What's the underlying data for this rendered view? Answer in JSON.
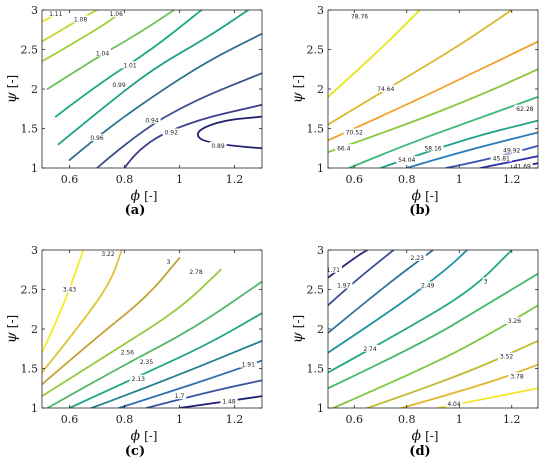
{
  "figure": {
    "x_label": "ϕ",
    "y_label": "ψ",
    "unit": "[-]"
  },
  "chart_data": [
    {
      "type": "contour",
      "panel_label": "(a)",
      "xlabel": "ϕ [-]",
      "ylabel": "ψ [-]",
      "xlim": [
        0.5,
        1.3
      ],
      "ylim": [
        1,
        3
      ],
      "xticks": [
        0.6,
        0.8,
        1,
        1.2
      ],
      "xtick_labels": [
        "0.6",
        "0.8",
        "1",
        "1.2"
      ],
      "yticks": [
        1,
        1.5,
        2,
        2.5,
        3
      ],
      "ytick_labels": [
        "1",
        "1.5",
        "2",
        "2.5",
        "3"
      ],
      "grid": false,
      "levels": [
        {
          "label": "1.11",
          "color": "#e6e619",
          "points": [
            [
              0.5,
              2.85
            ],
            [
              0.58,
              3.0
            ]
          ],
          "label_at": [
            0.55,
            2.95
          ]
        },
        {
          "label": "1.08",
          "color": "#c9d235",
          "points": [
            [
              0.5,
              2.6
            ],
            [
              0.62,
              2.85
            ],
            [
              0.7,
              3.0
            ]
          ],
          "label_at": [
            0.64,
            2.88
          ]
        },
        {
          "label": "1.06",
          "color": "#a0d13f",
          "points": [
            [
              0.5,
              2.35
            ],
            [
              0.7,
              2.75
            ],
            [
              0.8,
              3.0
            ]
          ],
          "label_at": [
            0.77,
            2.95
          ]
        },
        {
          "label": "1.04",
          "color": "#6fc25a",
          "points": [
            [
              0.52,
              2.0
            ],
            [
              0.7,
              2.4
            ],
            [
              0.85,
              2.7
            ],
            [
              0.98,
              3.0
            ]
          ],
          "label_at": [
            0.72,
            2.45
          ]
        },
        {
          "label": "1.01",
          "color": "#22a884",
          "points": [
            [
              0.55,
              1.65
            ],
            [
              0.7,
              2.05
            ],
            [
              0.9,
              2.5
            ],
            [
              1.08,
              3.0
            ]
          ],
          "label_at": [
            0.82,
            2.3
          ]
        },
        {
          "label": "0.99",
          "color": "#1fa187",
          "points": [
            [
              0.56,
              1.3
            ],
            [
              0.7,
              1.7
            ],
            [
              0.9,
              2.25
            ],
            [
              1.1,
              2.65
            ],
            [
              1.25,
              3.0
            ]
          ],
          "label_at": [
            0.78,
            2.05
          ]
        },
        {
          "label": "0.96",
          "color": "#2c728e",
          "points": [
            [
              0.6,
              1.1
            ],
            [
              0.72,
              1.45
            ],
            [
              0.9,
              1.9
            ],
            [
              1.1,
              2.35
            ],
            [
              1.3,
              2.7
            ]
          ],
          "label_at": [
            0.7,
            1.38
          ]
        },
        {
          "label": "0.94",
          "color": "#3b528b",
          "points": [
            [
              0.7,
              1.0
            ],
            [
              0.85,
              1.45
            ],
            [
              1.05,
              1.85
            ],
            [
              1.3,
              2.2
            ]
          ],
          "label_at": [
            0.9,
            1.6
          ]
        },
        {
          "label": "0.92",
          "color": "#3a3d8c",
          "points": [
            [
              0.8,
              1.0
            ],
            [
              0.86,
              1.3
            ],
            [
              1.05,
              1.6
            ],
            [
              1.3,
              1.8
            ]
          ],
          "label_at": [
            0.97,
            1.45
          ]
        },
        {
          "label": "0.89",
          "color": "#1f1f6e",
          "points": [
            [
              1.3,
              1.25
            ],
            [
              1.1,
              1.3
            ],
            [
              1.05,
              1.45
            ],
            [
              1.15,
              1.6
            ],
            [
              1.3,
              1.65
            ]
          ],
          "label_at": [
            1.14,
            1.28
          ]
        }
      ]
    },
    {
      "type": "contour",
      "panel_label": "(b)",
      "xlabel": "ϕ [-]",
      "ylabel": "ψ [-]",
      "xlim": [
        0.5,
        1.3
      ],
      "ylim": [
        1,
        3
      ],
      "xticks": [
        0.6,
        0.8,
        1,
        1.2
      ],
      "xtick_labels": [
        "0.6",
        "0.8",
        "1",
        "1.2"
      ],
      "yticks": [
        1,
        1.5,
        2,
        2.5,
        3
      ],
      "ytick_labels": [
        "1",
        "1.5",
        "2",
        "2.5",
        "3"
      ],
      "grid": false,
      "levels": [
        {
          "label": "78.76",
          "color": "#e8e41a",
          "points": [
            [
              0.5,
              1.9
            ],
            [
              0.7,
              2.5
            ],
            [
              0.85,
              3.0
            ]
          ],
          "label_at": [
            0.62,
            2.92
          ]
        },
        {
          "label": "74.64",
          "color": "#d8b92f",
          "points": [
            [
              0.5,
              1.55
            ],
            [
              0.8,
              2.15
            ],
            [
              1.0,
              2.55
            ],
            [
              1.2,
              3.0
            ]
          ],
          "label_at": [
            0.72,
            2.0
          ]
        },
        {
          "label": "70.52",
          "color": "#f0a12a",
          "points": [
            [
              0.5,
              1.35
            ],
            [
              0.8,
              1.8
            ],
            [
              1.05,
              2.2
            ],
            [
              1.3,
              2.6
            ]
          ],
          "label_at": [
            0.6,
            1.45
          ]
        },
        {
          "label": "66.4",
          "color": "#8dc63f",
          "points": [
            [
              0.5,
              1.2
            ],
            [
              0.8,
              1.55
            ],
            [
              1.1,
              1.95
            ],
            [
              1.3,
              2.25
            ]
          ],
          "label_at": [
            0.56,
            1.25
          ]
        },
        {
          "label": "62.28",
          "color": "#3db87a",
          "points": [
            [
              0.58,
              1.0
            ],
            [
              0.8,
              1.3
            ],
            [
              1.05,
              1.6
            ],
            [
              1.3,
              1.9
            ]
          ],
          "label_at": [
            1.25,
            1.75
          ]
        },
        {
          "label": "58.16",
          "color": "#1fa187",
          "points": [
            [
              0.7,
              1.0
            ],
            [
              1.0,
              1.35
            ],
            [
              1.3,
              1.6
            ]
          ],
          "label_at": [
            0.9,
            1.25
          ]
        },
        {
          "label": "54.04",
          "color": "#2a7ab9",
          "points": [
            [
              0.8,
              1.0
            ],
            [
              1.0,
              1.2
            ],
            [
              1.3,
              1.45
            ]
          ],
          "label_at": [
            0.8,
            1.1
          ]
        },
        {
          "label": "49.92",
          "color": "#3652b3",
          "points": [
            [
              0.95,
              1.0
            ],
            [
              1.1,
              1.1
            ],
            [
              1.3,
              1.28
            ]
          ],
          "label_at": [
            1.2,
            1.22
          ]
        },
        {
          "label": "45.81",
          "color": "#2d2ea8",
          "points": [
            [
              1.08,
              1.0
            ],
            [
              1.2,
              1.08
            ],
            [
              1.3,
              1.15
            ]
          ],
          "label_at": [
            1.16,
            1.12
          ]
        },
        {
          "label": "41.69",
          "color": "#1a1a80",
          "points": [
            [
              1.2,
              1.0
            ],
            [
              1.3,
              1.06
            ]
          ],
          "label_at": [
            1.24,
            1.02
          ]
        }
      ]
    },
    {
      "type": "contour",
      "panel_label": "(c)",
      "xlabel": "ϕ [-]",
      "ylabel": "ψ [-]",
      "xlim": [
        0.5,
        1.3
      ],
      "ylim": [
        1,
        3
      ],
      "xticks": [
        0.6,
        0.8,
        1,
        1.2
      ],
      "xtick_labels": [
        "0.6",
        "0.8",
        "1",
        "1.2"
      ],
      "yticks": [
        1,
        1.5,
        2,
        2.5,
        3
      ],
      "ytick_labels": [
        "1",
        "1.5",
        "2",
        "2.5",
        "3"
      ],
      "grid": false,
      "levels": [
        {
          "label": "3.43",
          "color": "#f2ec2a",
          "points": [
            [
              0.5,
              1.7
            ],
            [
              0.58,
              2.3
            ],
            [
              0.65,
              3.0
            ]
          ],
          "label_at": [
            0.6,
            2.5
          ]
        },
        {
          "label": "3.22",
          "color": "#e0c235",
          "points": [
            [
              0.5,
              1.45
            ],
            [
              0.65,
              2.1
            ],
            [
              0.75,
              2.6
            ],
            [
              0.79,
              3.0
            ]
          ],
          "label_at": [
            0.74,
            2.95
          ]
        },
        {
          "label": "3",
          "color": "#c4a136",
          "points": [
            [
              0.5,
              1.3
            ],
            [
              0.7,
              1.9
            ],
            [
              0.88,
              2.4
            ],
            [
              1.0,
              2.9
            ]
          ],
          "label_at": [
            0.96,
            2.85
          ]
        },
        {
          "label": "2.78",
          "color": "#97c93c",
          "points": [
            [
              0.5,
              1.15
            ],
            [
              0.75,
              1.7
            ],
            [
              1.0,
              2.25
            ],
            [
              1.15,
              2.75
            ]
          ],
          "label_at": [
            1.06,
            2.72
          ]
        },
        {
          "label": "2.56",
          "color": "#53b66c",
          "points": [
            [
              0.52,
              1.0
            ],
            [
              0.8,
              1.55
            ],
            [
              1.05,
              2.0
            ],
            [
              1.3,
              2.6
            ]
          ],
          "label_at": [
            0.81,
            1.7
          ]
        },
        {
          "label": "2.35",
          "color": "#21a685",
          "points": [
            [
              0.6,
              1.0
            ],
            [
              0.85,
              1.4
            ],
            [
              1.1,
              1.8
            ],
            [
              1.3,
              2.2
            ]
          ],
          "label_at": [
            0.88,
            1.58
          ]
        },
        {
          "label": "2.13",
          "color": "#26818e",
          "points": [
            [
              0.68,
              1.0
            ],
            [
              0.95,
              1.35
            ],
            [
              1.3,
              1.85
            ]
          ],
          "label_at": [
            0.85,
            1.37
          ]
        },
        {
          "label": "1.91",
          "color": "#2b6fb0",
          "points": [
            [
              0.78,
              1.0
            ],
            [
              1.05,
              1.3
            ],
            [
              1.3,
              1.6
            ]
          ],
          "label_at": [
            1.25,
            1.55
          ]
        },
        {
          "label": "1.7",
          "color": "#3a52a0",
          "points": [
            [
              0.88,
              1.0
            ],
            [
              1.1,
              1.2
            ],
            [
              1.3,
              1.35
            ]
          ],
          "label_at": [
            1.0,
            1.15
          ]
        },
        {
          "label": "1.48",
          "color": "#1f1f75",
          "points": [
            [
              1.0,
              1.0
            ],
            [
              1.3,
              1.15
            ]
          ],
          "label_at": [
            1.18,
            1.08
          ]
        }
      ]
    },
    {
      "type": "contour",
      "panel_label": "(d)",
      "xlabel": "ϕ [-]",
      "ylabel": "ψ [-]",
      "xlim": [
        0.5,
        1.3
      ],
      "ylim": [
        1,
        3
      ],
      "xticks": [
        0.6,
        0.8,
        1,
        1.2
      ],
      "xtick_labels": [
        "0.6",
        "0.8",
        "1",
        "1.2"
      ],
      "yticks": [
        1,
        1.5,
        2,
        2.5,
        3
      ],
      "ytick_labels": [
        "1",
        "1.5",
        "2",
        "2.5",
        "3"
      ],
      "grid": false,
      "levels": [
        {
          "label": "1.71",
          "color": "#2a2b80",
          "points": [
            [
              0.5,
              2.65
            ],
            [
              0.6,
              2.9
            ],
            [
              0.65,
              3.0
            ]
          ],
          "label_at": [
            0.52,
            2.75
          ]
        },
        {
          "label": "1.97",
          "color": "#3a4f98",
          "points": [
            [
              0.5,
              2.3
            ],
            [
              0.6,
              2.6
            ],
            [
              0.75,
              3.0
            ]
          ],
          "label_at": [
            0.56,
            2.55
          ]
        },
        {
          "label": "2.23",
          "color": "#2f73a0",
          "points": [
            [
              0.5,
              1.95
            ],
            [
              0.7,
              2.5
            ],
            [
              0.9,
              3.0
            ]
          ],
          "label_at": [
            0.84,
            2.9
          ]
        },
        {
          "label": "2.49",
          "color": "#1f95a0",
          "points": [
            [
              0.5,
              1.7
            ],
            [
              0.75,
              2.25
            ],
            [
              0.95,
              2.75
            ],
            [
              1.03,
              3.0
            ]
          ],
          "label_at": [
            0.88,
            2.55
          ]
        },
        {
          "label": "2.74",
          "color": "#22a784",
          "points": [
            [
              0.5,
              1.45
            ],
            [
              0.8,
              2.0
            ],
            [
              1.05,
              2.5
            ],
            [
              1.2,
              3.0
            ]
          ],
          "label_at": [
            0.66,
            1.75
          ]
        },
        {
          "label": "3",
          "color": "#46b86c",
          "points": [
            [
              0.5,
              1.25
            ],
            [
              0.85,
              1.8
            ],
            [
              1.1,
              2.3
            ],
            [
              1.3,
              2.7
            ]
          ],
          "label_at": [
            1.1,
            2.6
          ]
        },
        {
          "label": "3.26",
          "color": "#80c845",
          "points": [
            [
              0.52,
              1.0
            ],
            [
              0.9,
              1.55
            ],
            [
              1.15,
              2.0
            ],
            [
              1.3,
              2.3
            ]
          ],
          "label_at": [
            1.21,
            2.1
          ]
        },
        {
          "label": "3.52",
          "color": "#c0bc32",
          "points": [
            [
              0.65,
              1.0
            ],
            [
              1.0,
              1.4
            ],
            [
              1.3,
              1.85
            ]
          ],
          "label_at": [
            1.18,
            1.65
          ]
        },
        {
          "label": "3.78",
          "color": "#e2b42c",
          "points": [
            [
              0.78,
              1.0
            ],
            [
              1.1,
              1.3
            ],
            [
              1.3,
              1.55
            ]
          ],
          "label_at": [
            1.22,
            1.4
          ]
        },
        {
          "label": "4.04",
          "color": "#f0e62a",
          "points": [
            [
              0.92,
              1.0
            ],
            [
              1.3,
              1.25
            ]
          ],
          "label_at": [
            0.98,
            1.05
          ]
        }
      ]
    }
  ]
}
